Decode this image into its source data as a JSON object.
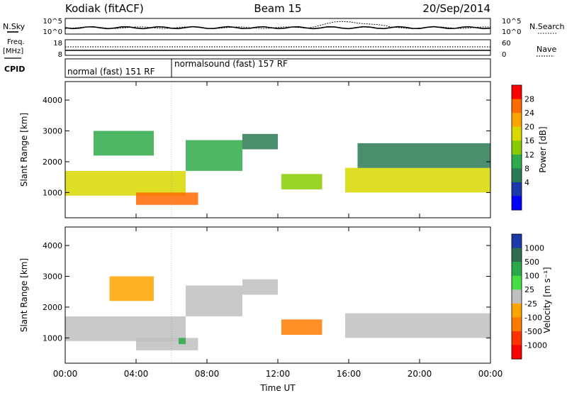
{
  "header": {
    "station": "Kodiak (fitACF)",
    "beam": "Beam 15",
    "date": "20/Sep/2014"
  },
  "left_labels": {
    "nsky": "N.Sky",
    "freq_line1": "Freq.",
    "freq_line2": "[MHz]",
    "cpid": "CPID"
  },
  "right_labels": {
    "nsearch": "N.Search",
    "nave": "Nave"
  },
  "noise_panel": {
    "left_ticks": [
      "10^5",
      "10^0"
    ],
    "right_ticks": [
      "10^5",
      "10^0"
    ]
  },
  "freq_panel": {
    "left_ticks": [
      "18",
      "8"
    ],
    "right_ticks": [
      "60",
      "0"
    ]
  },
  "cpid_panel": {
    "segments": [
      {
        "label": "normal (fast) 151 RF",
        "start": 0,
        "end": 6
      },
      {
        "label": "normalsound (fast) 157 RF",
        "start": 6,
        "end": 24
      }
    ]
  },
  "colorbars": [
    {
      "title": "Power [dB]",
      "ticks": [
        "28",
        "24",
        "20",
        "16",
        "12",
        "8",
        "4"
      ],
      "colors": [
        "#ff0000",
        "#ff6a00",
        "#ffa500",
        "#d8d800",
        "#88cc00",
        "#2eaa4a",
        "#2a7a55",
        "#1a3aa8",
        "#0000ff"
      ]
    },
    {
      "title": "Velocity [m s⁻¹]",
      "ticks": [
        "1000",
        "500",
        "100",
        "25",
        "-25",
        "-100",
        "-500",
        "-1000"
      ],
      "colors": [
        "#1a3aa8",
        "#2e6e4e",
        "#2aa84a",
        "#44dd44",
        "#bfbfbf",
        "#ffa500",
        "#ff7b00",
        "#ff3300",
        "#ff0000"
      ]
    }
  ],
  "axes": {
    "xlabel": "Time UT",
    "ylabel": "Slant Range [km]",
    "xticks": [
      "00:00",
      "04:00",
      "08:00",
      "12:00",
      "16:00",
      "20:00",
      "00:00"
    ],
    "yticks": [
      "1000",
      "2000",
      "3000",
      "4000"
    ]
  },
  "chart_data": [
    {
      "type": "heatmap",
      "title": "Power [dB]",
      "xlabel": "Time UT",
      "ylabel": "Slant Range [km]",
      "xlim": [
        0,
        24
      ],
      "ylim": [
        180,
        4600
      ],
      "colorbar_ticks": [
        4,
        8,
        12,
        16,
        20,
        24,
        28
      ],
      "bands": [
        {
          "x_start": 0.0,
          "x_end": 6.8,
          "range_low": 900,
          "range_high": 1700,
          "value": 18
        },
        {
          "x_start": 6.8,
          "x_end": 10.0,
          "range_low": 1700,
          "range_high": 2700,
          "value": 10
        },
        {
          "x_start": 10.0,
          "x_end": 12.0,
          "range_low": 2400,
          "range_high": 2900,
          "value": 6
        },
        {
          "x_start": 12.2,
          "x_end": 14.5,
          "range_low": 1100,
          "range_high": 1600,
          "value": 14
        },
        {
          "x_start": 15.8,
          "x_end": 24.0,
          "range_low": 1000,
          "range_high": 1800,
          "value": 18
        },
        {
          "x_start": 1.6,
          "x_end": 5.0,
          "range_low": 2200,
          "range_high": 3000,
          "value": 10
        },
        {
          "x_start": 4.0,
          "x_end": 7.5,
          "range_low": 600,
          "range_high": 1000,
          "value": 24
        },
        {
          "x_start": 16.5,
          "x_end": 24.0,
          "range_low": 1800,
          "range_high": 2600,
          "value": 6
        }
      ]
    },
    {
      "type": "heatmap",
      "title": "Velocity [m s⁻¹]",
      "xlabel": "Time UT",
      "ylabel": "Slant Range [km]",
      "xlim": [
        0,
        24
      ],
      "ylim": [
        180,
        4600
      ],
      "colorbar_ticks": [
        -1000,
        -500,
        -100,
        -25,
        25,
        100,
        500,
        1000
      ],
      "bands": [
        {
          "x_start": 0.0,
          "x_end": 6.8,
          "range_low": 900,
          "range_high": 1700,
          "value": 0
        },
        {
          "x_start": 6.8,
          "x_end": 10.0,
          "range_low": 1700,
          "range_high": 2700,
          "value": 0
        },
        {
          "x_start": 10.0,
          "x_end": 12.0,
          "range_low": 2400,
          "range_high": 2900,
          "value": 0
        },
        {
          "x_start": 12.2,
          "x_end": 14.5,
          "range_low": 1100,
          "range_high": 1600,
          "value": -300
        },
        {
          "x_start": 15.8,
          "x_end": 24.0,
          "range_low": 1000,
          "range_high": 1800,
          "value": 0
        },
        {
          "x_start": 2.5,
          "x_end": 5.0,
          "range_low": 2200,
          "range_high": 3000,
          "value": -80
        },
        {
          "x_start": 4.0,
          "x_end": 7.5,
          "range_low": 600,
          "range_high": 1000,
          "value": 0
        },
        {
          "x_start": 6.4,
          "x_end": 6.8,
          "range_low": 800,
          "range_high": 1000,
          "value": 150
        }
      ]
    }
  ]
}
